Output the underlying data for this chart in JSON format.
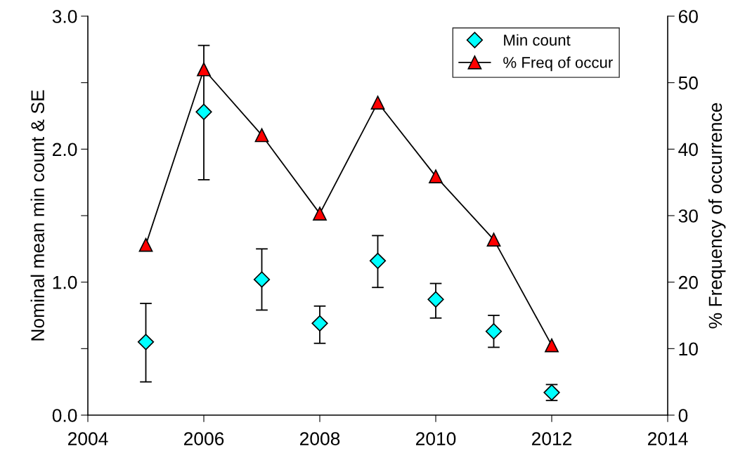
{
  "chart_data": {
    "type": "scatter",
    "x": [
      2005,
      2006,
      2007,
      2008,
      2009,
      2010,
      2011,
      2012
    ],
    "ylabel": "Nominal mean min count & SE",
    "y2label": "% Frequency of occurrence",
    "series": [
      {
        "name": "Min count",
        "color": "#00ffff",
        "marker": "diamond",
        "values": [
          0.55,
          2.28,
          1.02,
          0.69,
          1.16,
          0.87,
          0.63,
          0.17
        ],
        "errors": [
          [
            0.25,
            0.84
          ],
          [
            1.77,
            2.78
          ],
          [
            0.79,
            1.25
          ],
          [
            0.54,
            0.82
          ],
          [
            0.96,
            1.35
          ],
          [
            0.73,
            0.99
          ],
          [
            0.51,
            0.75
          ],
          [
            0.11,
            0.23
          ]
        ]
      },
      {
        "name": "% Freq of occur",
        "type": "line",
        "axis": "y2",
        "color": "#ff0000",
        "marker": "triangle",
        "line_style": "solid",
        "values": [
          25.6,
          52.0,
          42.1,
          30.3,
          47.0,
          35.9,
          26.4,
          10.5
        ]
      }
    ],
    "xlim": [
      2004,
      2014
    ],
    "xticks": [
      2004,
      2006,
      2008,
      2010,
      2012,
      2014
    ],
    "ylim": [
      0,
      3
    ],
    "yticks": [
      {
        "value": 0,
        "label": "0.0"
      },
      {
        "value": 0.5,
        "label": null
      },
      {
        "value": 1,
        "label": "1.0"
      },
      {
        "value": 1.5,
        "label": null
      },
      {
        "value": 2,
        "label": "2.0"
      },
      {
        "value": 2.5,
        "label": null
      },
      {
        "value": 3,
        "label": "3.0"
      }
    ],
    "y2lim": [
      0,
      60
    ],
    "y2ticks": [
      0,
      10,
      20,
      30,
      40,
      50,
      60
    ],
    "grid": false,
    "legend": "top right"
  }
}
